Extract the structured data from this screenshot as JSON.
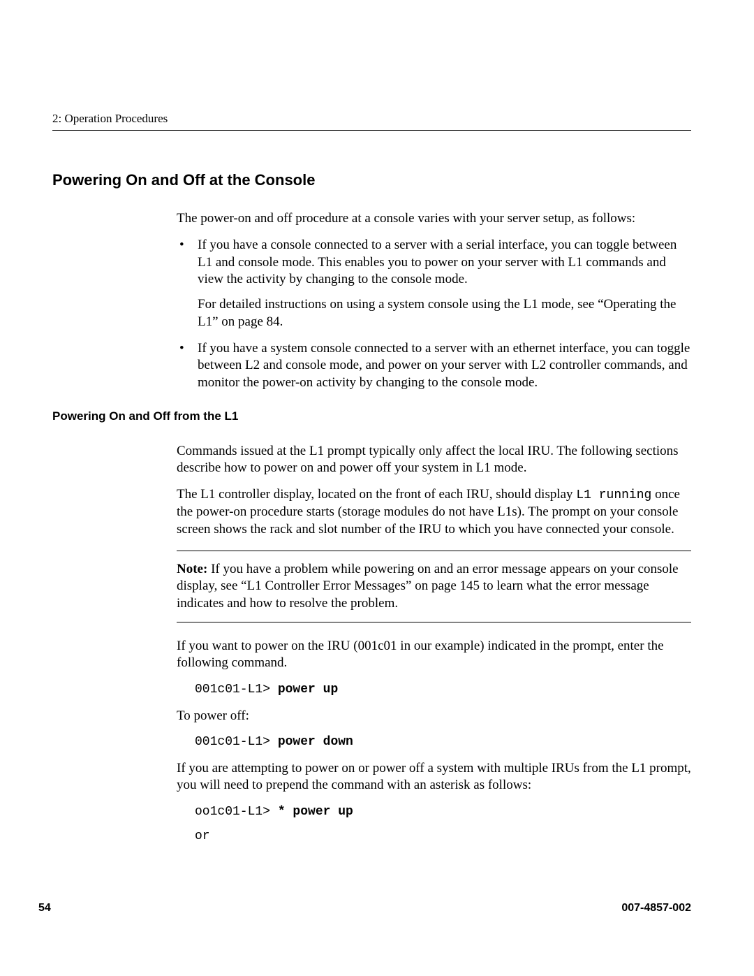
{
  "colors": {
    "text": "#000000",
    "background": "#ffffff",
    "rule": "#000000"
  },
  "typography": {
    "body_family": "Times New Roman",
    "body_size_pt": 14,
    "heading_family": "Helvetica",
    "section_title_size_pt": 16,
    "sub_title_size_pt": 13,
    "mono_family": "Courier New",
    "mono_size_pt": 13
  },
  "header": {
    "chapter": "2: Operation Procedures"
  },
  "section": {
    "title": "Powering On and Off at the Console",
    "intro": "The power-on and off procedure at a console varies with your server setup, as follows:",
    "bullets": [
      {
        "p1": "If you have a console connected to a server with a serial interface, you can toggle between L1 and console mode. This enables you to power on your server with L1 commands and view the activity by changing to the console mode.",
        "p2": "For detailed instructions on using a system console using the L1 mode, see “Operating the L1” on page 84."
      },
      {
        "p1": "If you have a system console connected to a server with an ethernet interface, you can toggle between L2 and console mode, and power on your server with L2 controller commands, and monitor the power-on activity by changing to the console mode."
      }
    ]
  },
  "sub": {
    "title": "Powering On and Off from the L1",
    "p1": "Commands issued at the L1 prompt typically only affect the local IRU. The following sections describe how to power on and power off your system in L1 mode.",
    "p2_pre": "The L1 controller display, located on the front of each IRU, should display ",
    "p2_code": "L1 running",
    "p2_post": " once the power-on procedure starts (storage modules do not have L1s). The prompt on your console screen shows the rack and slot number of the IRU to which you have connected your console.",
    "note_label": "Note:",
    "note_body": "  If you have a problem while powering on and an error message appears on your console display, see “L1 Controller Error Messages” on page 145 to learn what the error message indicates and how to resolve the problem.",
    "p3": "If you want to power on the IRU (001c01 in our example) indicated in the prompt, enter the following command.",
    "code1_prompt": "001c01-L1> ",
    "code1_cmd": "power up",
    "p4": "To power off:",
    "code2_prompt": "001c01-L1> ",
    "code2_cmd": "power down",
    "p5": "If you are attempting to power on or power off a system with multiple IRUs from the L1 prompt, you will need to prepend the command with an asterisk as follows:",
    "code3_prompt": "oo1c01-L1> ",
    "code3_cmd": "* power up",
    "code3_or": "or"
  },
  "footer": {
    "page": "54",
    "docnum": "007-4857-002"
  }
}
